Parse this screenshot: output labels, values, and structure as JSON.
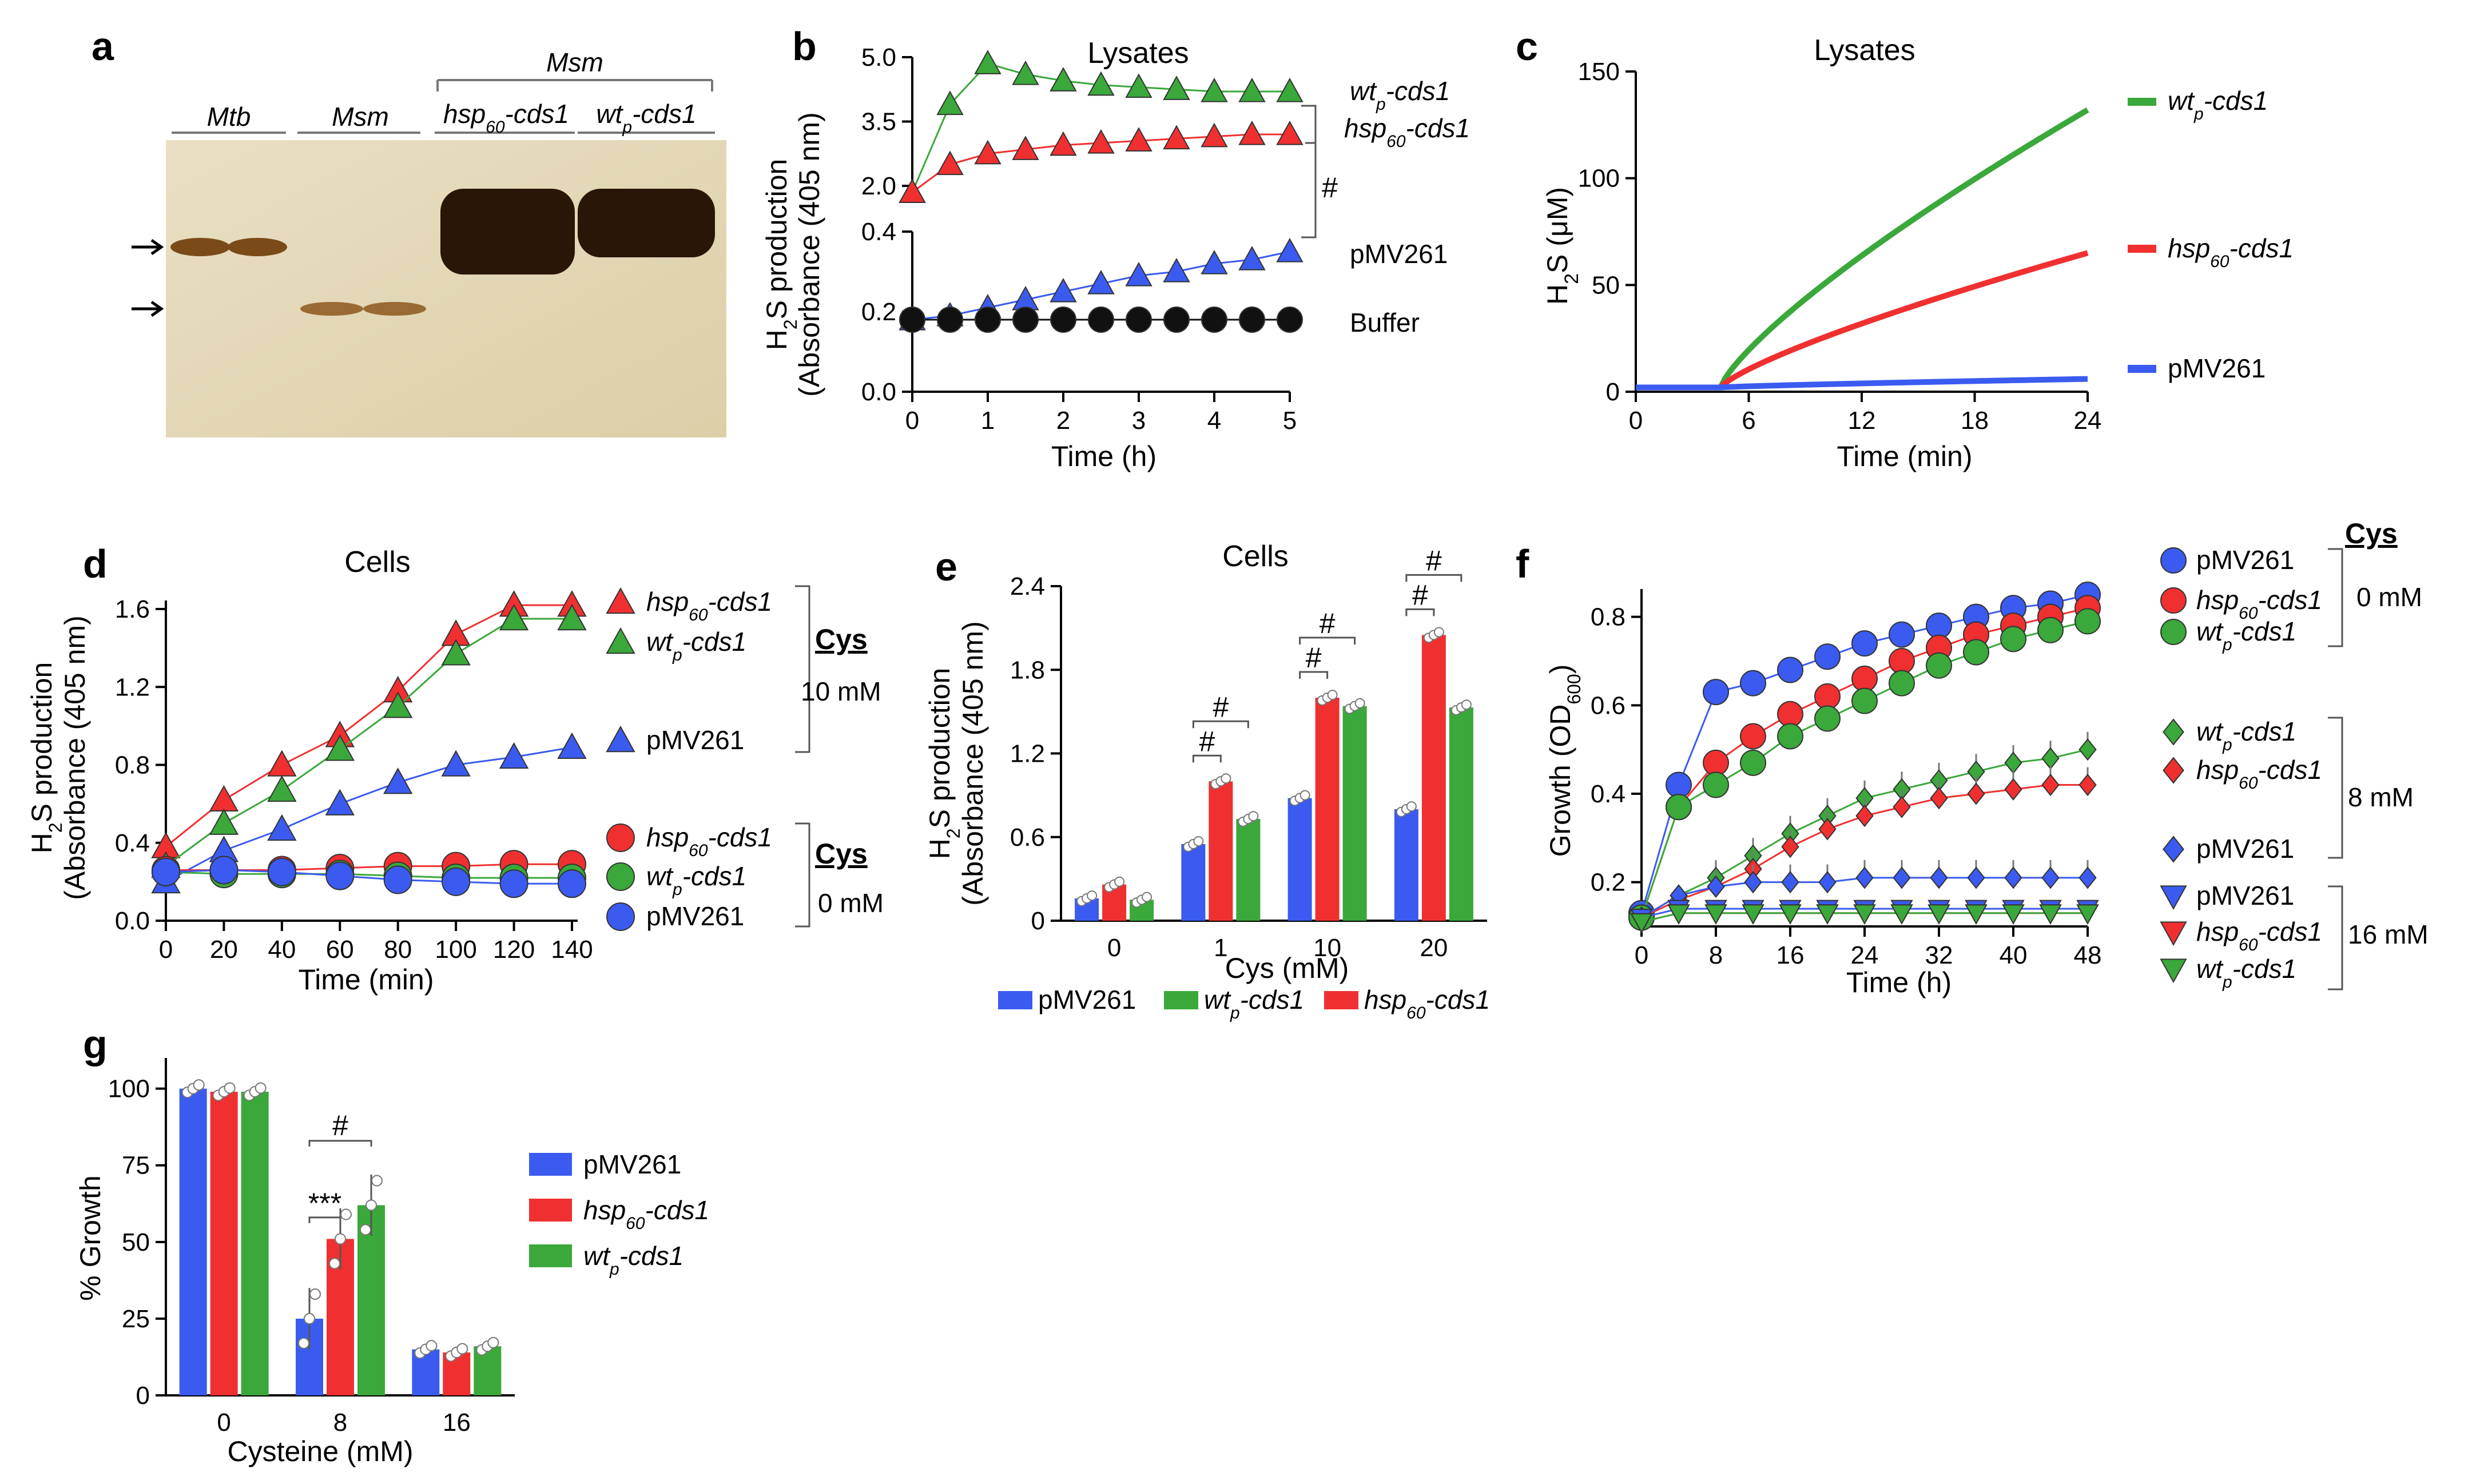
{
  "colors": {
    "blue": "#3b5bf0",
    "red": "#f03030",
    "green": "#3aa83a",
    "black": "#111111"
  },
  "panels": {
    "a": {
      "label": "a",
      "group_label": "Msm",
      "lane_labels": [
        "Mtb",
        "Msm",
        "hsp",
        "-cds1",
        "wt",
        "-cds1"
      ],
      "lane_subs": [
        "60",
        "p"
      ]
    },
    "b": {
      "label": "b",
      "title": "Lysates",
      "ylabel_line1": "H",
      "ylabel_sub": "2",
      "ylabel_line1b": "S production",
      "ylabel_line2": "(Absorbance (405 nm)",
      "xlabel": "Time (h)",
      "sig": "#",
      "legend": [
        {
          "name": "wt",
          "sub": "p",
          "suffix": "-cds1",
          "italic": true
        },
        {
          "name": "hsp",
          "sub": "60",
          "suffix": "-cds1",
          "italic": true
        },
        {
          "name": "pMV261",
          "italic": false
        },
        {
          "name": "Buffer",
          "italic": false
        }
      ]
    },
    "c": {
      "label": "c",
      "title": "Lysates",
      "ylabel": "H",
      "ylabel_sub": "2",
      "ylabel_rest": "S (μM)",
      "xlabel": "Time (min)",
      "legend": [
        {
          "name": "wt",
          "sub": "p",
          "suffix": "-cds1",
          "italic": true
        },
        {
          "name": "hsp",
          "sub": "60",
          "suffix": "-cds1",
          "italic": true
        },
        {
          "name": "pMV261",
          "italic": false
        }
      ]
    },
    "d": {
      "label": "d",
      "title": "Cells",
      "ylabel_line1": "H",
      "ylabel_sub": "2",
      "ylabel_line1b": "S production",
      "ylabel_line2": "(Absorbance (405 nm)",
      "xlabel": "Time (min)",
      "cys_label": "Cys",
      "cys_hi": "10 mM",
      "cys_lo": "0 mM",
      "legend": [
        {
          "name": "hsp",
          "sub": "60",
          "suffix": "-cds1",
          "italic": true
        },
        {
          "name": "wt",
          "sub": "p",
          "suffix": "-cds1",
          "italic": true
        },
        {
          "name": "pMV261",
          "italic": false
        }
      ]
    },
    "e": {
      "label": "e",
      "title": "Cells",
      "ylabel_line1": "H",
      "ylabel_sub": "2",
      "ylabel_line1b": "S production",
      "ylabel_line2": "(Absorbance (405 nm)",
      "xlabel": "Cys (mM)",
      "sig": "#",
      "legend": [
        {
          "name": "pMV261",
          "italic": false
        },
        {
          "name": "wt",
          "sub": "p",
          "suffix": "-cds1",
          "italic": true
        },
        {
          "name": "hsp",
          "sub": "60",
          "suffix": "-cds1",
          "italic": true
        }
      ]
    },
    "f": {
      "label": "f",
      "ylabel": "Growth (OD",
      "ylabel_sub": "600",
      "ylabel_end": ")",
      "xlabel": "Time (h)",
      "cys_label": "Cys",
      "conc": [
        "0 mM",
        "8 mM",
        "16 mM"
      ],
      "legend": [
        {
          "name": "pMV261",
          "italic": false
        },
        {
          "name": "hsp",
          "sub": "60",
          "suffix": "-cds1",
          "italic": true
        },
        {
          "name": "wt",
          "sub": "p",
          "suffix": "-cds1",
          "italic": true
        },
        {
          "name": "wt",
          "sub": "p",
          "suffix": "-cds1",
          "italic": true
        },
        {
          "name": "hsp",
          "sub": "60",
          "suffix": "-cds1",
          "italic": true
        },
        {
          "name": "pMV261",
          "italic": false
        },
        {
          "name": "pMV261",
          "italic": false
        },
        {
          "name": "hsp",
          "sub": "60",
          "suffix": "-cds1",
          "italic": true
        },
        {
          "name": "wt",
          "sub": "p",
          "suffix": "-cds1",
          "italic": true
        }
      ]
    },
    "g": {
      "label": "g",
      "ylabel": "% Growth",
      "xlabel": "Cysteine (mM)",
      "sig": "#",
      "sig2": "***",
      "legend": [
        {
          "name": "pMV261",
          "italic": false
        },
        {
          "name": "hsp",
          "sub": "60",
          "suffix": "-cds1",
          "italic": true
        },
        {
          "name": "wt",
          "sub": "p",
          "suffix": "-cds1",
          "italic": true
        }
      ]
    }
  },
  "chart_data": [
    {
      "id": "b",
      "type": "line",
      "title": "Lysates",
      "xlabel": "Time (h)",
      "ylabel": "H2S production (Absorbance (405 nm)",
      "xlim": [
        0,
        5
      ],
      "x_ticks": [
        0,
        1,
        2,
        3,
        4,
        5
      ],
      "y_ticks_lower": [
        0.0,
        0.2,
        0.4
      ],
      "y_ticks_upper": [
        2.0,
        3.5,
        5.0
      ],
      "x": [
        0,
        0.5,
        1,
        1.5,
        2,
        2.5,
        3,
        3.5,
        4,
        4.5,
        5
      ],
      "series": [
        {
          "name": "wtp-cds1",
          "color": "green",
          "values": [
            1.85,
            3.9,
            4.85,
            4.6,
            4.45,
            4.35,
            4.3,
            4.25,
            4.2,
            4.2,
            4.2
          ]
        },
        {
          "name": "hsp60-cds1",
          "color": "red",
          "values": [
            1.85,
            2.5,
            2.75,
            2.85,
            2.95,
            3.0,
            3.05,
            3.1,
            3.15,
            3.2,
            3.2
          ]
        },
        {
          "name": "pMV261",
          "color": "blue",
          "values": [
            0.18,
            0.19,
            0.21,
            0.23,
            0.25,
            0.27,
            0.29,
            0.3,
            0.32,
            0.33,
            0.35
          ]
        },
        {
          "name": "Buffer",
          "color": "black",
          "values": [
            0.18,
            0.18,
            0.18,
            0.18,
            0.18,
            0.18,
            0.18,
            0.18,
            0.18,
            0.18,
            0.18
          ]
        }
      ]
    },
    {
      "id": "c",
      "type": "line",
      "title": "Lysates",
      "xlabel": "Time (min)",
      "ylabel": "H2S (μM)",
      "xlim": [
        0,
        24
      ],
      "ylim": [
        0,
        150
      ],
      "x_ticks": [
        0,
        6,
        12,
        18,
        24
      ],
      "y_ticks": [
        0,
        50,
        100,
        150
      ],
      "series": [
        {
          "name": "wtp-cds1",
          "color": "green",
          "start": 4.5,
          "end_value": 132
        },
        {
          "name": "hsp60-cds1",
          "color": "red",
          "start": 4.5,
          "end_value": 65
        },
        {
          "name": "pMV261",
          "color": "blue",
          "start": 4.5,
          "end_value": 6
        }
      ]
    },
    {
      "id": "d",
      "type": "line",
      "title": "Cells",
      "xlabel": "Time (min)",
      "ylabel": "H2S production (Absorbance (405 nm)",
      "xlim": [
        0,
        140
      ],
      "ylim": [
        0,
        1.6
      ],
      "x_ticks": [
        0,
        20,
        40,
        60,
        80,
        100,
        120,
        140
      ],
      "y_ticks": [
        0.0,
        0.4,
        0.8,
        1.2,
        1.6
      ],
      "x": [
        0,
        20,
        40,
        60,
        80,
        100,
        120,
        140
      ],
      "series": [
        {
          "name": "hsp60-cds1 10 mM",
          "color": "red",
          "marker": "triangle",
          "values": [
            0.38,
            0.62,
            0.8,
            0.95,
            1.18,
            1.47,
            1.62,
            1.62
          ]
        },
        {
          "name": "wtp-cds1 10 mM",
          "color": "green",
          "marker": "triangle",
          "values": [
            0.28,
            0.5,
            0.67,
            0.88,
            1.1,
            1.37,
            1.55,
            1.55
          ]
        },
        {
          "name": "pMV261 10 mM",
          "color": "blue",
          "marker": "triangle",
          "values": [
            0.2,
            0.36,
            0.47,
            0.6,
            0.71,
            0.8,
            0.84,
            0.89
          ]
        },
        {
          "name": "hsp60-cds1 0 mM",
          "color": "red",
          "marker": "circle",
          "values": [
            0.26,
            0.26,
            0.26,
            0.27,
            0.28,
            0.28,
            0.29,
            0.29
          ]
        },
        {
          "name": "wtp-cds1 0 mM",
          "color": "green",
          "marker": "circle",
          "values": [
            0.25,
            0.24,
            0.24,
            0.24,
            0.23,
            0.22,
            0.22,
            0.22
          ]
        },
        {
          "name": "pMV261 0 mM",
          "color": "blue",
          "marker": "circle",
          "values": [
            0.25,
            0.26,
            0.25,
            0.23,
            0.21,
            0.2,
            0.19,
            0.19
          ]
        }
      ]
    },
    {
      "id": "e",
      "type": "bar",
      "title": "Cells",
      "xlabel": "Cys (mM)",
      "ylabel": "H2S production (Absorbance (405 nm)",
      "ylim": [
        0,
        2.4
      ],
      "y_ticks": [
        0,
        0.6,
        1.2,
        1.8,
        2.4
      ],
      "categories": [
        "0",
        "1",
        "10",
        "20"
      ],
      "series": [
        {
          "name": "pMV261",
          "color": "blue",
          "values": [
            0.16,
            0.55,
            0.88,
            0.8
          ]
        },
        {
          "name": "hsp60-cds1",
          "color": "red",
          "values": [
            0.26,
            1.0,
            1.6,
            2.05
          ]
        },
        {
          "name": "wtp-cds1",
          "color": "green",
          "values": [
            0.15,
            0.73,
            1.54,
            1.53
          ]
        }
      ]
    },
    {
      "id": "f",
      "type": "line",
      "xlabel": "Time (h)",
      "ylabel": "Growth (OD600)",
      "xlim": [
        0,
        48
      ],
      "ylim": [
        0.1,
        0.85
      ],
      "x_ticks": [
        0,
        8,
        16,
        24,
        32,
        40,
        48
      ],
      "y_ticks": [
        0.2,
        0.4,
        0.6,
        0.8
      ],
      "x": [
        0,
        4,
        8,
        12,
        16,
        20,
        24,
        28,
        32,
        36,
        40,
        44,
        48
      ],
      "series": [
        {
          "name": "pMV261 0 mM",
          "color": "blue",
          "marker": "circle",
          "values": [
            0.13,
            0.42,
            0.63,
            0.65,
            0.68,
            0.71,
            0.74,
            0.76,
            0.78,
            0.8,
            0.82,
            0.83,
            0.85
          ]
        },
        {
          "name": "hsp60-cds1 0 mM",
          "color": "red",
          "marker": "circle",
          "values": [
            0.12,
            0.37,
            0.47,
            0.53,
            0.58,
            0.62,
            0.66,
            0.7,
            0.73,
            0.76,
            0.78,
            0.8,
            0.82
          ]
        },
        {
          "name": "wtp-cds1 0 mM",
          "color": "green",
          "marker": "circle",
          "values": [
            0.12,
            0.37,
            0.42,
            0.47,
            0.53,
            0.57,
            0.61,
            0.65,
            0.69,
            0.72,
            0.75,
            0.77,
            0.79
          ]
        },
        {
          "name": "wtp-cds1 8 mM",
          "color": "green",
          "marker": "diamond",
          "values": [
            0.12,
            0.17,
            0.21,
            0.26,
            0.31,
            0.35,
            0.39,
            0.41,
            0.43,
            0.45,
            0.47,
            0.48,
            0.5
          ]
        },
        {
          "name": "hsp60-cds1 8 mM",
          "color": "red",
          "marker": "diamond",
          "values": [
            0.12,
            0.16,
            0.19,
            0.23,
            0.28,
            0.32,
            0.35,
            0.37,
            0.39,
            0.4,
            0.41,
            0.42,
            0.42
          ]
        },
        {
          "name": "pMV261 8 mM",
          "color": "blue",
          "marker": "diamond",
          "values": [
            0.12,
            0.17,
            0.19,
            0.2,
            0.2,
            0.2,
            0.21,
            0.21,
            0.21,
            0.21,
            0.21,
            0.21,
            0.21
          ]
        },
        {
          "name": "pMV261 16 mM",
          "color": "blue",
          "marker": "tri-down",
          "values": [
            0.12,
            0.14,
            0.14,
            0.14,
            0.14,
            0.14,
            0.14,
            0.14,
            0.14,
            0.14,
            0.14,
            0.14,
            0.14
          ]
        },
        {
          "name": "hsp60-cds1 16 mM",
          "color": "red",
          "marker": "tri-down",
          "values": [
            0.11,
            0.13,
            0.13,
            0.13,
            0.13,
            0.13,
            0.13,
            0.13,
            0.13,
            0.13,
            0.13,
            0.13,
            0.13
          ]
        },
        {
          "name": "wtp-cds1 16 mM",
          "color": "green",
          "marker": "tri-down",
          "values": [
            0.11,
            0.13,
            0.13,
            0.13,
            0.13,
            0.13,
            0.13,
            0.13,
            0.13,
            0.13,
            0.13,
            0.13,
            0.13
          ]
        }
      ]
    },
    {
      "id": "g",
      "type": "bar",
      "xlabel": "Cysteine (mM)",
      "ylabel": "% Growth",
      "ylim": [
        0,
        110
      ],
      "y_ticks": [
        0,
        25,
        50,
        75,
        100
      ],
      "categories": [
        "0",
        "8",
        "16"
      ],
      "series": [
        {
          "name": "pMV261",
          "color": "blue",
          "values": [
            100,
            25,
            15
          ]
        },
        {
          "name": "hsp60-cds1",
          "color": "red",
          "values": [
            99,
            51,
            14
          ]
        },
        {
          "name": "wtp-cds1",
          "color": "green",
          "values": [
            99,
            62,
            16
          ]
        }
      ]
    }
  ]
}
